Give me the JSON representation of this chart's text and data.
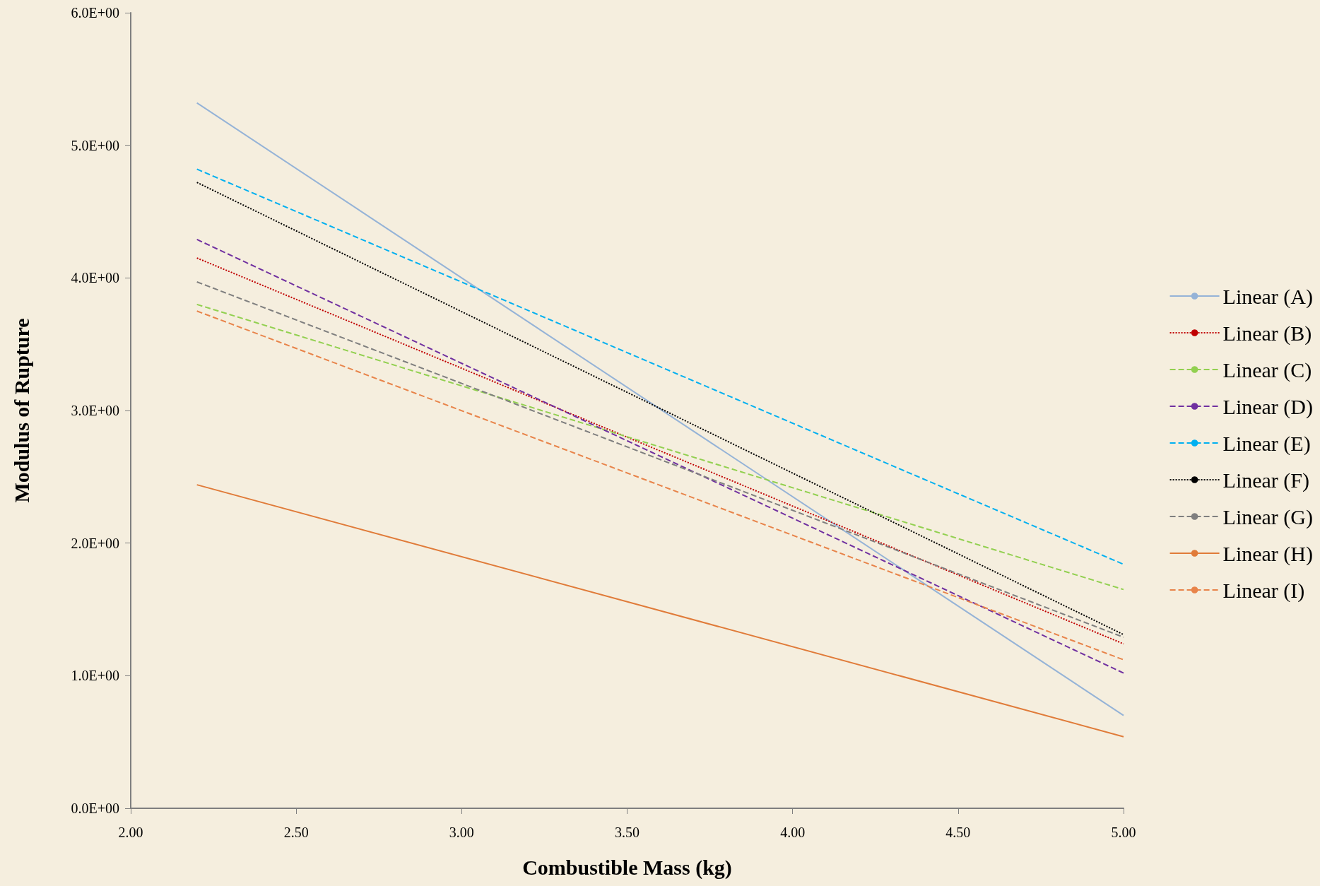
{
  "chart_data": {
    "type": "line",
    "xlabel": "Combustible Mass (kg)",
    "ylabel": "Modulus of Rupture",
    "xlim": [
      2,
      5
    ],
    "xticks": [
      {
        "value": 2,
        "label": "2.00"
      },
      {
        "value": 2.5,
        "label": "2.50"
      },
      {
        "value": 3,
        "label": "3.00"
      },
      {
        "value": 3.5,
        "label": "3.50"
      },
      {
        "value": 4,
        "label": "4.00"
      },
      {
        "value": 4.5,
        "label": "4.50"
      },
      {
        "value": 5,
        "label": "5.00"
      }
    ],
    "ylim": [
      0,
      6
    ],
    "yticks": [
      {
        "value": 0,
        "label": "0.0E+00"
      },
      {
        "value": 1,
        "label": "1.0E+00"
      },
      {
        "value": 2,
        "label": "2.0E+00"
      },
      {
        "value": 3,
        "label": "3.0E+00"
      },
      {
        "value": 4,
        "label": "4.0E+00"
      },
      {
        "value": 5,
        "label": "5.0E+00"
      },
      {
        "value": 6,
        "label": "6.0E+00"
      }
    ],
    "x": [
      2.2,
      5
    ],
    "grid": false,
    "legend": "right",
    "marker": "none",
    "series": [
      {
        "name": "Linear (A)",
        "color": "#95b3d7",
        "line_style": "solid",
        "values": [
          5.32,
          0.7
        ]
      },
      {
        "name": "Linear (B)",
        "color": "#c00000",
        "line_style": "dotted",
        "values": [
          4.15,
          1.24
        ]
      },
      {
        "name": "Linear (C)",
        "color": "#92d050",
        "line_style": "dashed",
        "values": [
          3.8,
          1.65
        ]
      },
      {
        "name": "Linear (D)",
        "color": "#7030a0",
        "line_style": "dashed",
        "values": [
          4.29,
          1.02
        ]
      },
      {
        "name": "Linear (E)",
        "color": "#00b0f0",
        "line_style": "dashed",
        "values": [
          4.82,
          1.84
        ]
      },
      {
        "name": "Linear (F)",
        "color": "#000000",
        "line_style": "dotted",
        "values": [
          4.72,
          1.31
        ]
      },
      {
        "name": "Linear (G)",
        "color": "#7f7f7f",
        "line_style": "dashed",
        "values": [
          3.97,
          1.29
        ]
      },
      {
        "name": "Linear (H)",
        "color": "#e07b39",
        "line_style": "solid",
        "values": [
          2.44,
          0.54
        ]
      },
      {
        "name": "Linear (I)",
        "color": "#e8844a",
        "line_style": "dashed",
        "values": [
          3.75,
          1.12
        ]
      }
    ]
  }
}
